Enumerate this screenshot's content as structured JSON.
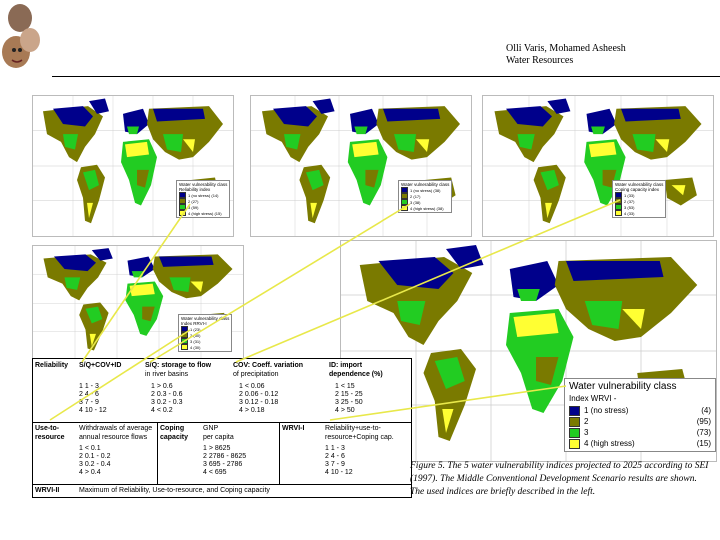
{
  "header": {
    "line1": "Olli Varis, Mohamed Asheesh",
    "line2": "Water Resources"
  },
  "caption": "Figure 5. The 5 water vulnerability indices projected to 2025 according to SEI (1997). The Middle Conventional Development Scenario results are shown. The used indices are briefly described in the left.",
  "colors": {
    "water_blue": "#3333aa",
    "class1": "#00008b",
    "class2": "#7a7a00",
    "class3": "#22cc22",
    "class4": "#ffff33"
  },
  "legends": {
    "top_left": {
      "title": "Water vulnerability class",
      "sub": "Reliability index",
      "rows": [
        {
          "label": "1 (no stress)",
          "count": "(14)"
        },
        {
          "label": "2",
          "count": "(27)"
        },
        {
          "label": "3",
          "count": "(59)"
        },
        {
          "label": "4 (high stress)",
          "count": "(15)"
        }
      ]
    },
    "top_mid": {
      "title": "Water vulnerability class",
      "sub": "",
      "rows": [
        {
          "label": "1 (no stress)",
          "count": "(38)"
        },
        {
          "label": "2",
          "count": "(17)"
        },
        {
          "label": "3",
          "count": "(38)"
        },
        {
          "label": "4 (high stress)",
          "count": "(38)"
        }
      ]
    },
    "top_right": {
      "title": "Water vulnerability class",
      "sub": "Coping capacity index",
      "rows": [
        {
          "label": "1",
          "count": "(33)"
        },
        {
          "label": "2",
          "count": "(37)"
        },
        {
          "label": "3",
          "count": "(53)"
        },
        {
          "label": "4",
          "count": "(33)"
        }
      ]
    },
    "mid_left": {
      "title": "Water vulnerability class",
      "sub": "Index RRVI-I",
      "rows": [
        {
          "label": "1",
          "count": "(23)"
        },
        {
          "label": "2",
          "count": "(50)"
        },
        {
          "label": "3",
          "count": "(31)"
        },
        {
          "label": "4",
          "count": "(30)"
        }
      ]
    },
    "big": {
      "title": "Water vulnerability class",
      "sub": "Index WRVI -",
      "rows": [
        {
          "label": "1 (no stress)",
          "count": "(4)"
        },
        {
          "label": "2",
          "count": "(95)"
        },
        {
          "label": "3",
          "count": "(73)"
        },
        {
          "label": "4 (high stress)",
          "count": "(15)"
        }
      ]
    }
  },
  "table": {
    "reliability": "Reliability",
    "sq_cov_id": "S/Q+COV+ID",
    "sq_storage": "S/Q: storage to flow",
    "sq_storage2": "in river basins",
    "cov": "COV: Coeff. variation",
    "cov2": "of precipitation",
    "id": "ID: import",
    "id2": "dependence (%)",
    "col1": [
      "1  1 - 3",
      "2  4 - 6",
      "3  7 - 9",
      "4  10 - 12"
    ],
    "col2": [
      "1  > 0.6",
      "2  0.3 - 0.6",
      "3  0.2 - 0.3",
      "4  < 0.2"
    ],
    "col3": [
      "1  < 0.06",
      "2  0.06 - 0.12",
      "3  0.12 - 0.18",
      "4  > 0.18"
    ],
    "col4": [
      "1  < 15",
      "2  15 - 25",
      "3  25 - 50",
      "4  > 50"
    ],
    "use_to": "Use-to-",
    "resource": "resource",
    "withdrawal": "Withdrawals of average",
    "withdrawal2": "annual resource flows",
    "col5": [
      "1  < 0.1",
      "2  0.1 - 0.2",
      "3  0.2 - 0.4",
      "4  > 0.4"
    ],
    "coping": "Coping",
    "capacity": "capacity",
    "gnp": "GNP",
    "gnp2": "per capita",
    "col6": [
      "1  > 8625",
      "2  2786 - 8625",
      "3  695 - 2786",
      "4  < 695"
    ],
    "wrvi_i": "WRVI-I",
    "rel_use": "Reliability+use-to-",
    "rel_use2": "resource+Coping cap.",
    "col7": [
      "1  1 - 3",
      "2  4 - 6",
      "3  7 - 9",
      "4  10 - 12"
    ],
    "wrvi_ii": "WRVI-II",
    "max_desc": "Maximum of Reliability, Use-to-resource, and Coping capacity"
  }
}
